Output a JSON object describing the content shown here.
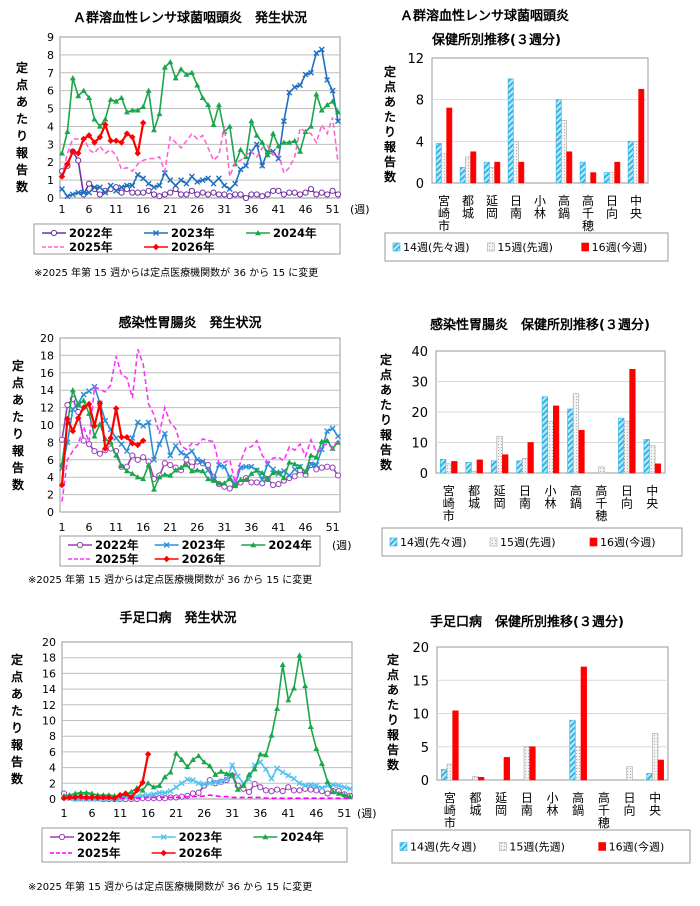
{
  "common": {
    "ylabel": "定点あたり報告数",
    "week_unit": "(週)",
    "note": "※2025 年第 15 週からは定点医療機関数が 36 から 15 に変更"
  },
  "chart_data": [
    {
      "type": "line",
      "title": "Ａ群溶血性レンサ球菌咽頭炎　発生状況",
      "ylabel": "定点あたり報告数",
      "xlabel": "(週)",
      "ylim": [
        0,
        9
      ],
      "ystep": 1,
      "xticks": [
        1,
        6,
        11,
        16,
        21,
        26,
        31,
        36,
        41,
        46,
        51
      ],
      "grid": true,
      "legend": "bottom",
      "series": [
        {
          "name": "2022年",
          "color": "#7030a0",
          "marker": "circle",
          "dashed": false,
          "values": [
            1.5,
            1.8,
            2.6,
            2.1,
            0.2,
            0.8,
            0.5,
            0.2,
            0.4,
            0.5,
            0.6,
            0.3,
            0.5,
            0.3,
            0.3,
            0.3,
            0.4,
            0.2,
            0.1,
            0.2,
            0.3,
            0.5,
            0.2,
            0.2,
            0.4,
            0.2,
            0.3,
            0.2,
            0.3,
            0.2,
            0.2,
            0.1,
            0.2,
            0.2,
            0.0,
            0.2,
            0.2,
            0.1,
            0.2,
            0.4,
            0.4,
            0.2,
            0.3,
            0.3,
            0.2,
            0.3,
            0.5,
            0.2,
            0.3,
            0.2,
            0.4,
            0.2
          ]
        },
        {
          "name": "2023年",
          "color": "#1f6fc0",
          "marker": "x",
          "dashed": false,
          "values": [
            0.5,
            0.1,
            0.2,
            0.3,
            0.3,
            0.3,
            0.6,
            0.6,
            0.3,
            0.7,
            0.4,
            0.6,
            0.7,
            0.7,
            1.3,
            1.1,
            0.8,
            0.6,
            0.7,
            1.4,
            1.0,
            0.7,
            1.0,
            0.8,
            1.2,
            0.9,
            1.0,
            1.1,
            0.8,
            1.1,
            0.7,
            0.5,
            0.8,
            1.6,
            1.8,
            2.6,
            3.0,
            1.8,
            2.6,
            2.6,
            2.2,
            4.3,
            5.9,
            6.2,
            6.3,
            6.9,
            7.0,
            8.1,
            8.3,
            6.6,
            6.0,
            4.3
          ]
        },
        {
          "name": "2024年",
          "color": "#1aa64a",
          "marker": "triangle",
          "dashed": false,
          "values": [
            2.5,
            3.7,
            6.7,
            5.7,
            6.0,
            5.6,
            4.4,
            4.0,
            4.4,
            5.5,
            5.4,
            5.6,
            4.8,
            4.9,
            4.9,
            5.1,
            6.0,
            3.8,
            4.7,
            7.3,
            7.6,
            6.7,
            7.2,
            6.9,
            7.0,
            6.3,
            5.6,
            5.2,
            4.1,
            5.2,
            3.7,
            4.0,
            1.9,
            2.7,
            2.3,
            4.3,
            3.5,
            3.1,
            2.4,
            3.6,
            2.9,
            3.1,
            3.1,
            3.2,
            2.6,
            3.7,
            4.0,
            5.8,
            4.9,
            5.2,
            5.4,
            4.8
          ]
        },
        {
          "name": "2025年",
          "color": "#ff66cc",
          "marker": "none",
          "dashed": true,
          "values": [
            1.2,
            2.5,
            3.3,
            3.3,
            3.4,
            2.7,
            2.5,
            2.9,
            2.5,
            2.7,
            2.4,
            1.6,
            1.7,
            1.5,
            1.9,
            2.1,
            2.2,
            2.2,
            2.3,
            1.5,
            3.4,
            3.1,
            2.8,
            3.2,
            3.6,
            3.3,
            3.5,
            2.8,
            2.1,
            2.4,
            4.0,
            1.2,
            2.0,
            2.1,
            2.4,
            2.6,
            2.3,
            2.8,
            2.9,
            2.4,
            2.5,
            1.4,
            1.7,
            2.3,
            3.9,
            3.7,
            3.6,
            3.1,
            4.1,
            3.6,
            4.5,
            2.0
          ]
        },
        {
          "name": "2026年",
          "color": "#ff0000",
          "marker": "diamond",
          "dashed": false,
          "values": [
            1.2,
            1.9,
            2.6,
            2.5,
            3.3,
            3.5,
            3.1,
            3.4,
            4.1,
            3.2,
            3.2,
            3.1,
            3.6,
            3.4,
            2.5,
            4.2
          ]
        }
      ]
    },
    {
      "type": "line",
      "title": "感染性胃腸炎　発生状況",
      "ylabel": "定点あたり報告数",
      "xlabel": "(週)",
      "ylim": [
        0,
        20
      ],
      "ystep": 2,
      "xticks": [
        1,
        6,
        11,
        16,
        21,
        26,
        31,
        36,
        41,
        46,
        51
      ],
      "grid": true,
      "legend": "bottom",
      "series": [
        {
          "name": "2022年",
          "color": "#9b3fb5",
          "marker": "circle",
          "dashed": false,
          "values": [
            8.3,
            12.3,
            13,
            11.5,
            8.2,
            7.8,
            7,
            6.7,
            7.1,
            7.3,
            7,
            5.2,
            5.2,
            6.5,
            6,
            6.3,
            5.8,
            3.8,
            4.2,
            5.6,
            5.4,
            5.1,
            4.8,
            6,
            5.2,
            5.8,
            5.6,
            5.4,
            4,
            3.2,
            2.9,
            2.7,
            3.1,
            3.4,
            3.9,
            3.4,
            3.4,
            3.3,
            3.8,
            3.1,
            3.2,
            3.6,
            3.9,
            4.1,
            4.8,
            4.3,
            5.4,
            4.9,
            5.1,
            5.2,
            5.1,
            4.2
          ]
        },
        {
          "name": "2023年",
          "color": "#2a8fd8",
          "marker": "x",
          "dashed": false,
          "values": [
            5,
            8,
            11.8,
            12.5,
            13.5,
            13.9,
            14.4,
            12.5,
            10.5,
            9.5,
            8.5,
            7.8,
            7,
            8.5,
            10.3,
            9.9,
            10.3,
            6,
            7.8,
            9,
            6.5,
            7.6,
            6.8,
            6.5,
            7,
            6,
            5.8,
            4.8,
            3.8,
            5.4,
            5.2,
            4,
            3.2,
            5.1,
            5.2,
            5.2,
            4.8,
            3.7,
            5.5,
            4.9,
            4.4,
            4.7,
            4.2,
            4.9,
            5.2,
            4.6,
            5.5,
            5.4,
            7.2,
            9.3,
            9.6,
            8.7
          ]
        },
        {
          "name": "2024年",
          "color": "#1aa64a",
          "marker": "triangle",
          "dashed": false,
          "values": [
            5.5,
            10.2,
            14,
            12.3,
            12.8,
            11.3,
            8.7,
            10.1,
            8.4,
            8,
            6.5,
            5.3,
            4.7,
            4.4,
            4,
            3.8,
            5.4,
            2.6,
            4,
            4.3,
            4.2,
            4.8,
            5.1,
            5.4,
            4.7,
            4.8,
            4.7,
            3.8,
            3.6,
            3.3,
            3.3,
            3.8,
            3,
            3.7,
            3.7,
            4.4,
            4.8,
            4.5,
            3.8,
            4.5,
            4.6,
            3.9,
            5.7,
            5.5,
            5.2,
            4.6,
            6.5,
            6.3,
            8.1,
            8.2,
            7.3,
            8
          ]
        },
        {
          "name": "2025年",
          "color": "#ff33ff",
          "marker": "none",
          "dashed": true,
          "values": [
            1.2,
            6,
            7,
            7.8,
            9.8,
            8,
            14.4,
            14.1,
            13.8,
            14.6,
            17.9,
            15.8,
            15.4,
            13.1,
            18.7,
            17,
            12.4,
            11.2,
            9,
            12,
            10.3,
            9.6,
            7.6,
            7.2,
            7.9,
            7.7,
            8.4,
            8.2,
            8.1,
            5.6,
            5.7,
            6,
            3.3,
            5.8,
            7.4,
            7.5,
            8.2,
            6.5,
            5.7,
            6.2,
            6.3,
            5.9,
            7.5,
            7.1,
            7.8,
            6.4,
            8.3,
            6.9,
            7.5,
            7.9,
            7.3,
            8.3
          ]
        },
        {
          "name": "2026年",
          "color": "#ff0000",
          "marker": "diamond",
          "dashed": false,
          "values": [
            3.1,
            10.7,
            9.3,
            10.8,
            12,
            12.4,
            9.9,
            12.5,
            7.3,
            8.5,
            11.9,
            8.6,
            8.6,
            7.9,
            7.7,
            8.2
          ]
        }
      ]
    },
    {
      "type": "line",
      "title": "手足口病　発生状況",
      "ylabel": "定点あたり報告数",
      "xlabel": "(週)",
      "ylim": [
        0,
        20
      ],
      "ystep": 2,
      "xticks": [
        1,
        6,
        11,
        16,
        21,
        26,
        31,
        36,
        41,
        46,
        51
      ],
      "grid": true,
      "legend": "bottom",
      "series": [
        {
          "name": "2022年",
          "color": "#9b3fb5",
          "marker": "circle",
          "dashed": false,
          "values": [
            0.7,
            0.2,
            0.1,
            0.1,
            0.1,
            0.1,
            0.1,
            0,
            0,
            0,
            0,
            0,
            0,
            0,
            0.1,
            0.1,
            0.1,
            0.1,
            0.1,
            0.2,
            0.2,
            0.3,
            0.4,
            0.7,
            0.8,
            1.7,
            2.4,
            2,
            2.2,
            2.4,
            3,
            1.7,
            1.3,
            0.9,
            1.9,
            1.5,
            1.1,
            1,
            1.2,
            1,
            1.5,
            1.1,
            1.1,
            1.3,
            1.2,
            1.1,
            1,
            0.7,
            1,
            1,
            0.6,
            0.4
          ]
        },
        {
          "name": "2023年",
          "color": "#4fc3f0",
          "marker": "x",
          "dashed": false,
          "values": [
            0.2,
            0.1,
            0,
            0,
            0,
            0,
            0,
            0,
            0,
            0,
            0,
            0.2,
            0.3,
            0.3,
            0.4,
            0.5,
            0.6,
            0.8,
            0.8,
            1,
            1.5,
            2,
            2.5,
            2.4,
            2,
            1.9,
            2,
            2.1,
            2.2,
            2.5,
            4.3,
            2.9,
            2,
            2.5,
            4.3,
            4.7,
            3.8,
            2.6,
            3.9,
            3.4,
            3,
            2.6,
            2,
            1.7,
            1.8,
            1.7,
            1.4,
            1.7,
            1.8,
            1.7,
            1.5,
            1.3
          ]
        },
        {
          "name": "2024年",
          "color": "#1aa64a",
          "marker": "triangle",
          "dashed": false,
          "values": [
            0.4,
            0.5,
            0.7,
            0.8,
            0.8,
            0.7,
            0.5,
            0.5,
            0.5,
            0.4,
            0.4,
            0.6,
            0.9,
            1.4,
            1.1,
            2,
            1.5,
            1.7,
            2.8,
            3.4,
            5.8,
            5,
            4.1,
            5,
            5.5,
            4.7,
            4.2,
            3.1,
            3.5,
            3.2,
            3.1,
            1.2,
            1.7,
            3.1,
            3.8,
            5.7,
            5.6,
            8.1,
            11.5,
            17.1,
            12.6,
            14.1,
            18.3,
            14.4,
            9.2,
            6.4,
            4.5,
            2.2,
            0.9,
            0.7,
            0.5,
            0.3
          ]
        },
        {
          "name": "2025年",
          "color": "#ff00ff",
          "marker": "none",
          "dashed": true,
          "values": [
            0.1,
            0.1,
            0.1,
            0.1,
            0.1,
            0.1,
            0.1,
            0.1,
            0.1,
            0.1,
            0.1,
            0.1,
            0.1,
            0.1,
            0.1,
            0.2,
            0.2,
            0.2,
            0.2,
            0.2,
            0.2,
            0.2,
            0.3,
            0.3,
            0.3,
            0.4,
            0.5,
            0.4,
            0.3,
            0.3,
            0.2,
            0.2,
            0.2,
            0.2,
            0.2,
            0.2,
            0.1,
            0.1,
            0.1,
            0.1,
            0.1,
            0.1,
            0.1,
            0.1,
            0.1,
            0.1,
            0.1,
            0.1,
            0.1,
            0.1,
            0.1,
            0.1
          ]
        },
        {
          "name": "2026年",
          "color": "#ff0000",
          "marker": "diamond",
          "dashed": false,
          "values": [
            0.1,
            0.2,
            0.2,
            0.3,
            0.2,
            0.2,
            0.2,
            0.2,
            0.2,
            0.1,
            0.5,
            0.7,
            0.2,
            1.1,
            2.1,
            5.7
          ]
        }
      ]
    },
    {
      "type": "bar",
      "title": "Ａ群溶血性レンサ球菌咽頭炎",
      "subtitle": "保健所別推移(３週分)",
      "ylabel": "定点あたり報告数",
      "ylim": [
        0,
        12
      ],
      "ystep": 4,
      "categories": [
        "宮崎市",
        "都城",
        "延岡",
        "日南",
        "小林",
        "高鍋",
        "高千穂",
        "日向",
        "中央"
      ],
      "legend": "bottom",
      "series": [
        {
          "name": "14週(先々週)",
          "color": "#33b5e5",
          "values": [
            3.8,
            1.5,
            2.0,
            10.0,
            0,
            8.0,
            2.0,
            1.0,
            4.0
          ]
        },
        {
          "name": "15週(先週)",
          "color": "#d9d9d9",
          "values": [
            2.8,
            2.5,
            1.5,
            4.0,
            0,
            6.0,
            0,
            1.0,
            4.0
          ]
        },
        {
          "name": "16週(今週)",
          "color": "#ff0000",
          "values": [
            7.2,
            3.0,
            2.0,
            2.0,
            0,
            3.0,
            1.0,
            2.0,
            9.0
          ]
        }
      ]
    },
    {
      "type": "bar",
      "title": "感染性胃腸炎　保健所別推移(３週分)",
      "ylabel": "定点あたり報告数",
      "ylim": [
        0,
        40
      ],
      "ystep": 10,
      "categories": [
        "宮崎市",
        "都城",
        "延岡",
        "日南",
        "小林",
        "高鍋",
        "高千穂",
        "日向",
        "中央"
      ],
      "legend": "bottom",
      "series": [
        {
          "name": "14週(先々週)",
          "color": "#33b5e5",
          "values": [
            4.5,
            3.5,
            4.0,
            4.0,
            25,
            21,
            0,
            18,
            11
          ]
        },
        {
          "name": "15週(先週)",
          "color": "#d9d9d9",
          "values": [
            3.0,
            0.5,
            12,
            4.8,
            17,
            26,
            2.0,
            17,
            9.0
          ]
        },
        {
          "name": "16週(今週)",
          "color": "#ff0000",
          "values": [
            3.8,
            4.3,
            6.0,
            10,
            22,
            14,
            0,
            34,
            3.0
          ]
        }
      ]
    },
    {
      "type": "bar",
      "title": "手足口病　保健所別推移(３週分)",
      "ylabel": "定点あたり報告数",
      "ylim": [
        0,
        20
      ],
      "ystep": 5,
      "categories": [
        "宮崎市",
        "都城",
        "延岡",
        "日南",
        "小林",
        "高鍋",
        "高千穂",
        "日向",
        "中央"
      ],
      "legend": "bottom",
      "series": [
        {
          "name": "14週(先々週)",
          "color": "#33b5e5",
          "values": [
            1.6,
            0,
            0,
            0,
            0,
            9.0,
            0,
            0,
            1.0
          ]
        },
        {
          "name": "15週(先週)",
          "color": "#d9d9d9",
          "values": [
            2.4,
            0.5,
            0,
            5.0,
            0,
            5.0,
            0,
            2.0,
            7.0
          ]
        },
        {
          "name": "16週(今週)",
          "color": "#ff0000",
          "values": [
            10.4,
            0.4,
            3.4,
            5.0,
            0,
            17,
            0,
            0,
            3.0
          ]
        }
      ]
    }
  ]
}
